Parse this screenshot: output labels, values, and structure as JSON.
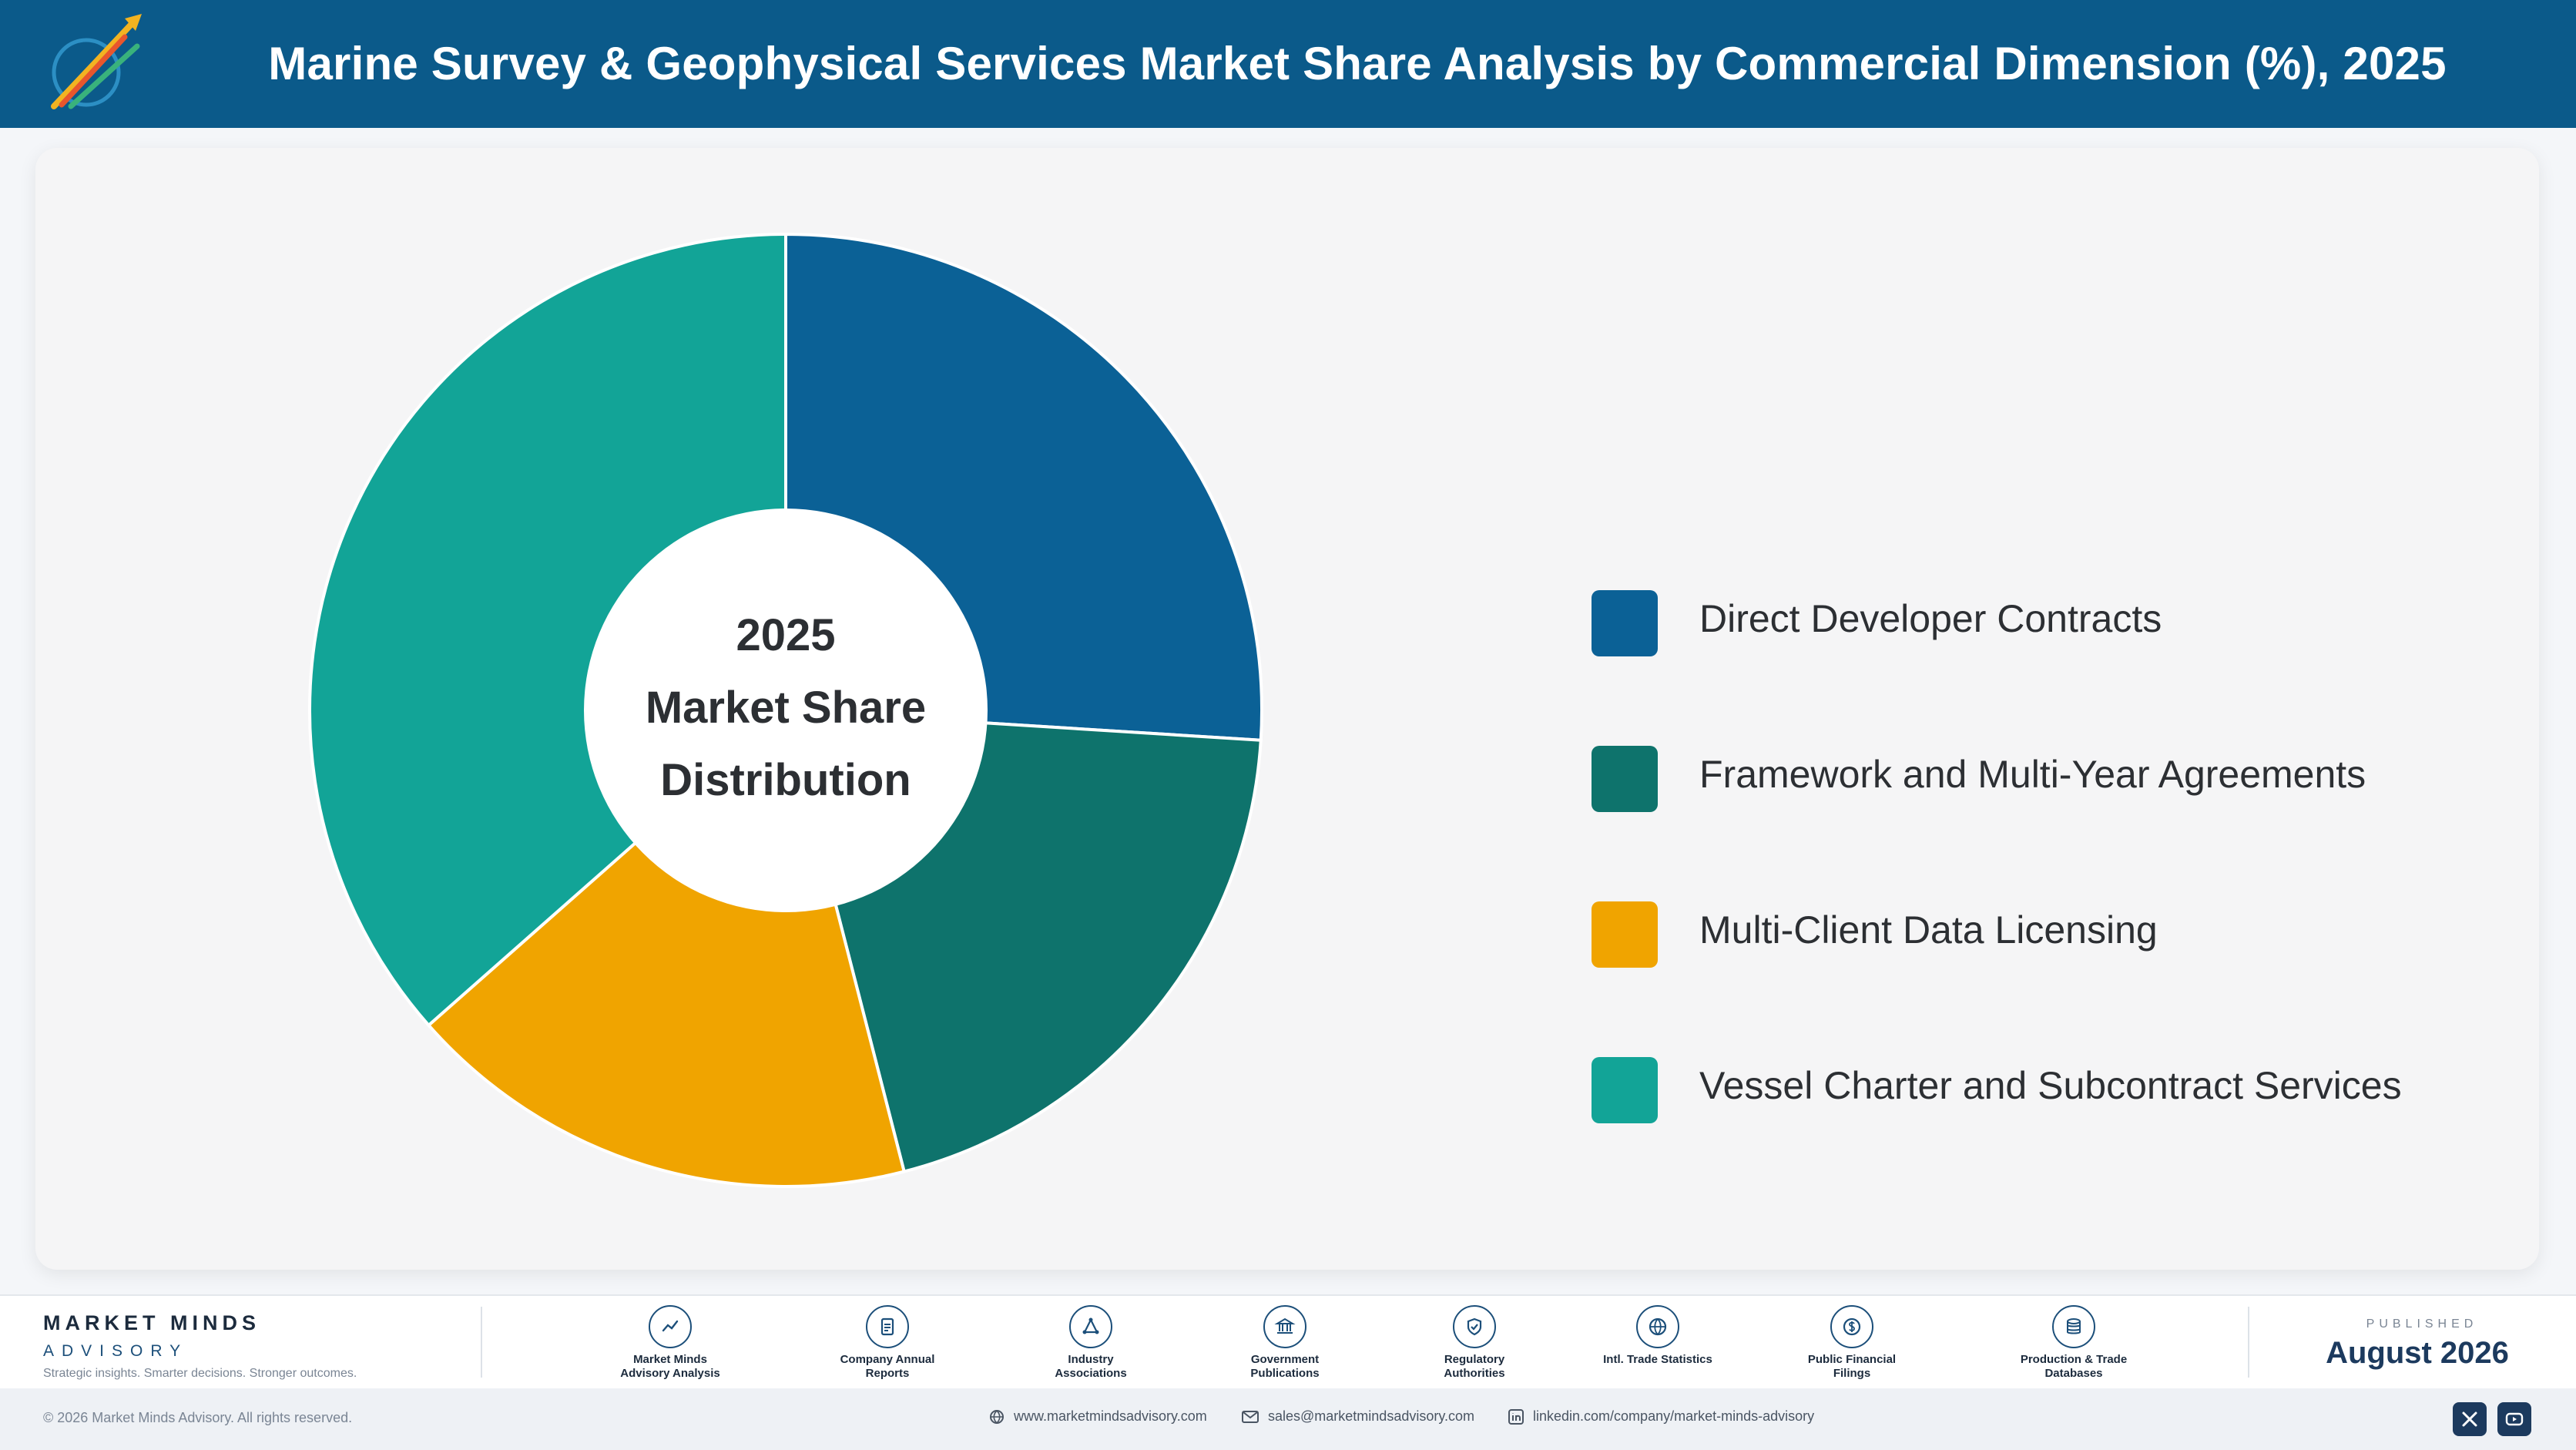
{
  "header": {
    "title": "Marine Survey & Geophysical Services Market Share Analysis by Commercial Dimension (%), 2025"
  },
  "chart_data": {
    "type": "pie",
    "center_label": [
      "2025",
      "Market Share",
      "Distribution"
    ],
    "categories": [
      "Direct Developer Contracts",
      "Framework and Multi-Year Agreements",
      "Multi-Client Data Licensing",
      "Vessel Charter and Subcontract Services"
    ],
    "values": [
      26,
      20,
      17.5,
      36.5
    ],
    "colors": [
      "#0b6196",
      "#0e736c",
      "#f0a400",
      "#12a497"
    ],
    "legend_position": "right"
  },
  "footer": {
    "brand_name": "MARKET MINDS",
    "brand_sub": "ADVISORY",
    "brand_tagline": "Strategic insights. Smarter decisions. Stronger outcomes.",
    "sources": [
      {
        "label": "Market Minds Advisory Analysis",
        "icon": "trend-line-icon"
      },
      {
        "label": "Company Annual Reports",
        "icon": "document-icon"
      },
      {
        "label": "Industry Associations",
        "icon": "network-icon"
      },
      {
        "label": "Government Publications",
        "icon": "government-building-icon"
      },
      {
        "label": "Regulatory Authorities",
        "icon": "shield-check-icon"
      },
      {
        "label": "Intl. Trade Statistics",
        "icon": "globe-icon"
      },
      {
        "label": "Public Financial Filings",
        "icon": "dollar-coin-icon"
      },
      {
        "label": "Production & Trade Databases",
        "icon": "database-icon"
      }
    ],
    "published_caption": "PUBLISHED",
    "published_date": "August 2026"
  },
  "bottom_bar": {
    "copyright": "© 2026 Market Minds Advisory. All rights reserved.",
    "website": "www.marketmindsadvisory.com",
    "email": "sales@marketmindsadvisory.com",
    "linkedin": "linkedin.com/company/market-minds-advisory"
  }
}
